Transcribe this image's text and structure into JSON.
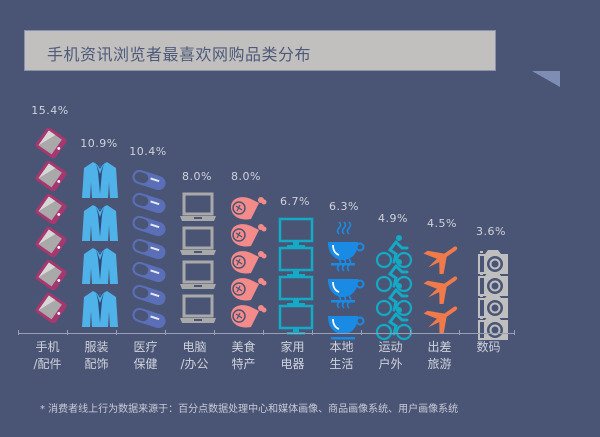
{
  "title": "手机资讯浏览者最喜欢网购品类分布",
  "footnote": "* 消费者线上行为数据来源于：百分点数据处理中心和媒体画像、商品画像系统、用户画像系统",
  "chart_data": {
    "type": "bar",
    "subtype": "pictograph",
    "title": "手机资讯浏览者最喜欢网购品类分布",
    "categories": [
      "手机/配件",
      "服装配饰",
      "医疗保健",
      "电脑/办公",
      "美食特产",
      "家用电器",
      "本地生活",
      "运动户外",
      "出差旅游",
      "数码"
    ],
    "values": [
      15.4,
      10.9,
      10.4,
      8.0,
      8.0,
      6.7,
      6.3,
      4.9,
      4.5,
      3.6
    ],
    "unit": "%",
    "xlabel": "",
    "ylabel": "",
    "grid": false,
    "legend": "none"
  },
  "columns": [
    {
      "pct": "15.4%",
      "line1": "手机",
      "line2": "/配件",
      "icon": "phone-icon",
      "count": 6,
      "color": "#a8366f"
    },
    {
      "pct": "10.9%",
      "line1": "服装",
      "line2": "配饰",
      "icon": "suit-icon",
      "count": 4,
      "color": "#4fb3ea"
    },
    {
      "pct": "10.4%",
      "line1": "医疗",
      "line2": "保健",
      "icon": "pill-icon",
      "count": 7,
      "color": "#5a6fb8"
    },
    {
      "pct": "8.0%",
      "line1": "电脑",
      "line2": "/办公",
      "icon": "laptop-icon",
      "count": 4,
      "color": "#a9a9a9"
    },
    {
      "pct": "8.0%",
      "line1": "美食",
      "line2": "特产",
      "icon": "meat-icon",
      "count": 5,
      "color": "#f48b8b"
    },
    {
      "pct": "6.7%",
      "line1": "家用",
      "line2": "电器",
      "icon": "monitor-icon",
      "count": 4,
      "color": "#14a9c4"
    },
    {
      "pct": "6.3%",
      "line1": "本地",
      "line2": "生活",
      "icon": "coffee-cup-icon",
      "count": 3,
      "color": "#1a8be4"
    },
    {
      "pct": "4.9%",
      "line1": "运动",
      "line2": "户外",
      "icon": "cyclist-icon",
      "count": 4,
      "color": "#14a9c4"
    },
    {
      "pct": "4.5%",
      "line1": "出差",
      "line2": "旅游",
      "icon": "airplane-icon",
      "count": 3,
      "color": "#f07a4a"
    },
    {
      "pct": "3.6%",
      "line1": "数码",
      "line2": "",
      "icon": "camera-icon",
      "count": 4,
      "color": "#bfbfbf"
    }
  ]
}
